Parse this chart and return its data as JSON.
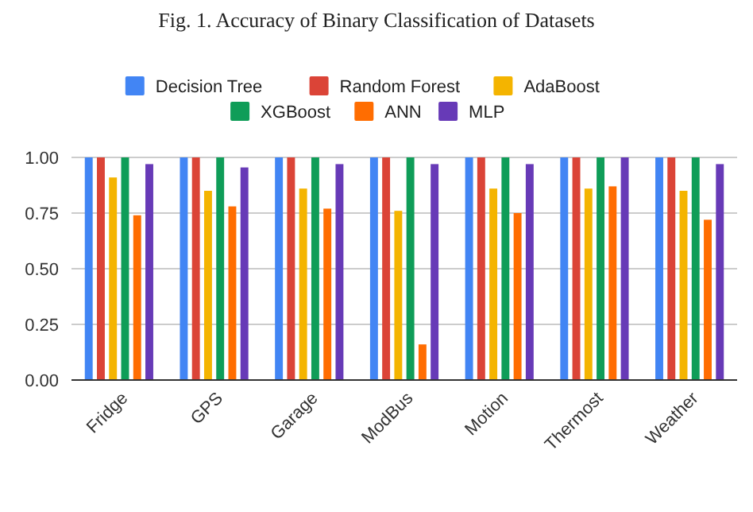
{
  "chart_data": {
    "type": "bar",
    "title": "Fig.  1.   Accuracy of Binary Classification of Datasets",
    "categories": [
      "Fridge",
      "GPS",
      "Garage",
      "ModBus",
      "Motion",
      "Thermost",
      "Weather"
    ],
    "series": [
      {
        "name": "Decision Tree",
        "color": "#4285f4",
        "values": [
          1,
          1,
          1,
          1,
          1,
          1,
          1
        ]
      },
      {
        "name": "Random Forest",
        "color": "#db4437",
        "values": [
          1,
          1,
          1,
          1,
          1,
          1,
          1
        ]
      },
      {
        "name": "AdaBoost",
        "color": "#f4b400",
        "values": [
          0.91,
          0.85,
          0.86,
          0.76,
          0.86,
          0.86,
          0.85
        ]
      },
      {
        "name": "XGBoost",
        "color": "#0f9d58",
        "values": [
          1,
          1,
          1,
          1,
          1,
          1,
          1
        ]
      },
      {
        "name": "ANN",
        "color": "#ff6d01",
        "values": [
          0.74,
          0.78,
          0.77,
          0.16,
          0.75,
          0.87,
          0.72
        ]
      },
      {
        "name": "MLP",
        "color": "#673ab7",
        "values": [
          0.97,
          0.955,
          0.97,
          0.97,
          0.97,
          1,
          0.97
        ]
      }
    ],
    "ylim": [
      0,
      1
    ],
    "yticks": [
      {
        "value": 0,
        "label": "0.00"
      },
      {
        "value": 0.25,
        "label": "0.25"
      },
      {
        "value": 0.5,
        "label": "0.50"
      },
      {
        "value": 0.75,
        "label": "0.75"
      },
      {
        "value": 1,
        "label": "1.00"
      }
    ],
    "grid": "y",
    "legend": "top"
  }
}
